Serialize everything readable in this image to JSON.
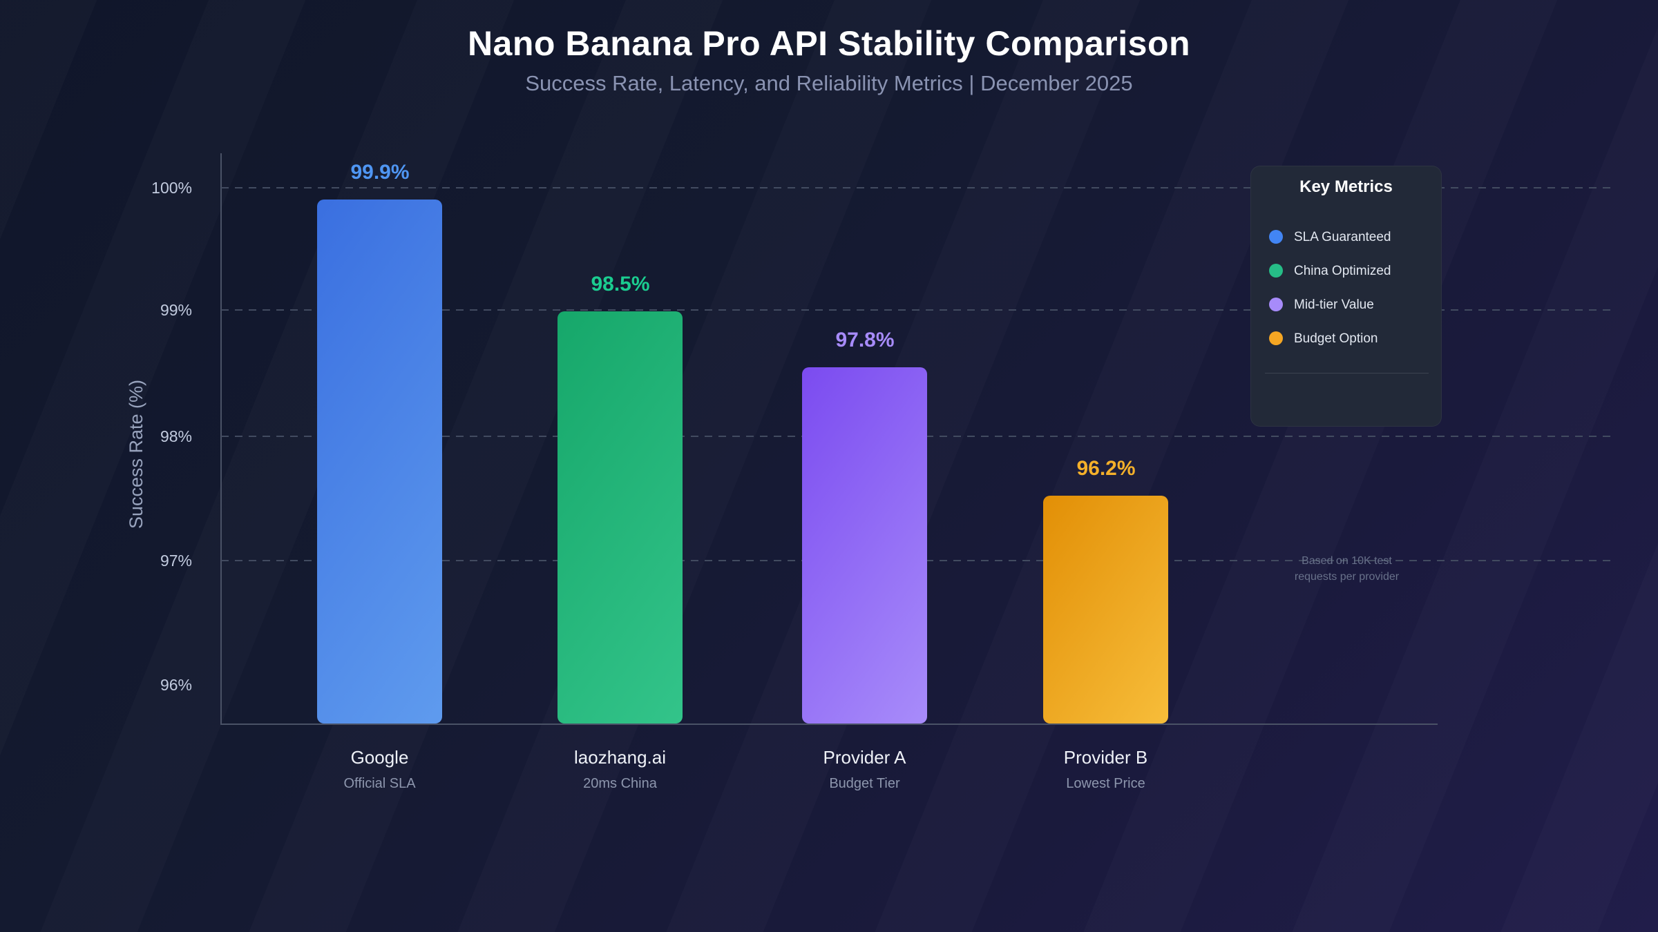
{
  "page": {
    "title": "Nano Banana Pro API Stability Comparison",
    "subtitle": "Success Rate, Latency, and Reliability Metrics | December 2025"
  },
  "chart_data": {
    "type": "bar",
    "title": "Nano Banana Pro API Stability Comparison",
    "subtitle": "Success Rate, Latency, and Reliability Metrics | December 2025",
    "ylabel": "Success Rate (%)",
    "grid": "horizontal dashed gridlines at 97-100%",
    "y_axis": {
      "tick_labels": [
        "100%",
        "99%",
        "98%",
        "97%",
        "96%"
      ],
      "tick_values": [
        100,
        99,
        98,
        97,
        96
      ]
    },
    "categories": [
      {
        "label": "Google",
        "sublabel": "Official SLA"
      },
      {
        "label": "laozhang.ai",
        "sublabel": "20ms China"
      },
      {
        "label": "Provider A",
        "sublabel": "Budget Tier"
      },
      {
        "label": "Provider B",
        "sublabel": "Lowest Price"
      }
    ],
    "values": [
      99.9,
      98.5,
      97.8,
      96.2
    ],
    "value_labels": [
      "99.9%",
      "98.5%",
      "97.8%",
      "96.2%"
    ],
    "bar_styles": [
      {
        "gradient_from": "#3a6fe0",
        "gradient_to": "#5f9bee",
        "label_color": "#4f96f3"
      },
      {
        "gradient_from": "#16a76a",
        "gradient_to": "#33c48a",
        "label_color": "#1bcd90"
      },
      {
        "gradient_from": "#7b4bf0",
        "gradient_to": "#a88cfa",
        "label_color": "#a78bfa"
      },
      {
        "gradient_from": "#e28f06",
        "gradient_to": "#f7bd3a",
        "label_color": "#f4b02a"
      }
    ],
    "legend": {
      "title": "Key Metrics",
      "position": "top-right",
      "items": [
        {
          "label": "SLA Guaranteed",
          "color": "#4285f4"
        },
        {
          "label": "China Optimized",
          "color": "#26bd87"
        },
        {
          "label": "Mid-tier Value",
          "color": "#a78bfa"
        },
        {
          "label": "Budget Option",
          "color": "#f5a623"
        }
      ],
      "note": "Based on 10K test requests per provider"
    }
  }
}
